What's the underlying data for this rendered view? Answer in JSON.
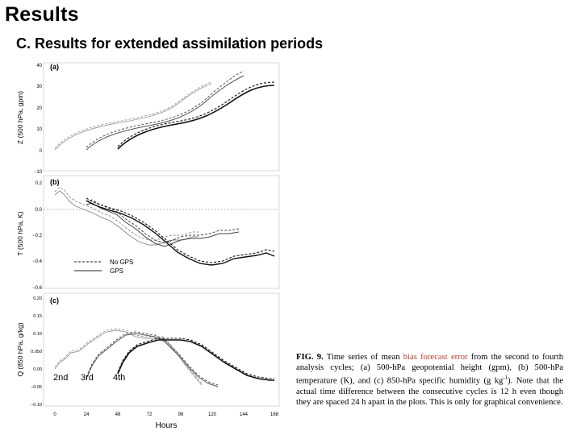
{
  "slide": {
    "title": "Results",
    "subtitle_letter": "C.",
    "subtitle_text": "Results for extended assimilation periods"
  },
  "figure": {
    "x_axis_label": "Hours",
    "x_ticks": [
      "0",
      "24",
      "48",
      "72",
      "96",
      "120",
      "144",
      "168"
    ],
    "panels": [
      {
        "label": "(a)",
        "ylabel": "Z (500 hPa, gpm)",
        "yticks": [
          "40",
          "30",
          "20",
          "10",
          "0",
          "−10"
        ]
      },
      {
        "label": "(b)",
        "ylabel": "T (500 hPa, K)",
        "yticks": [
          "0.2",
          "0.0",
          "−0.2",
          "−0.4",
          "−0.6"
        ]
      },
      {
        "label": "(c)",
        "ylabel": "Q (850 hPa, g/kg)",
        "yticks": [
          "0.20",
          "0.15",
          "0.10",
          "0.050",
          "0.00",
          "−0.05",
          "−0.10"
        ]
      }
    ],
    "legend": {
      "no_gps": "No GPS",
      "gps": "GPS"
    },
    "cycle_labels": [
      "2nd",
      "3rd",
      "4th"
    ]
  },
  "caption": {
    "label": "FIG. 9.",
    "part1": " Time series of mean ",
    "highlight": "bias forecast error",
    "part2": " from the second to fourth analysis cycles; (a) 500-hPa geopotential height (gpm), (b) 500-hPa temperature (K), and (c) 850-hPa specific humidity (g kg",
    "superscript": "-1",
    "part3": "). Note that the actual time difference between the consecutive cycles is 12 h even though they are spaced 24 h apart in the plots. This is only for graphical convenience."
  }
}
